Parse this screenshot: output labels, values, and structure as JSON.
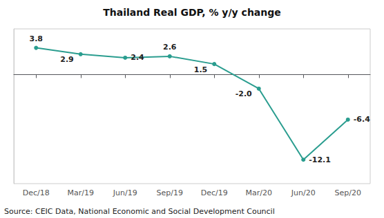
{
  "chart_data": {
    "type": "line",
    "title": "Thailand Real GDP, % y/y change",
    "categories": [
      "Dec/18",
      "Mar/19",
      "Jun/19",
      "Sep/19",
      "Dec/19",
      "Mar/20",
      "Jun/20",
      "Sep/20"
    ],
    "values": [
      3.8,
      2.9,
      2.4,
      2.6,
      1.5,
      -2.0,
      -12.1,
      -6.4
    ],
    "value_labels": [
      "3.8",
      "2.9",
      "2.4",
      "2.6",
      "1.5",
      "-2.0",
      "-12.1",
      "-6.4"
    ],
    "data_labels": true,
    "color": "#2a9d8f",
    "marker": "circle",
    "ylim": [
      -15.5,
      6.5
    ],
    "tick_labels": "x",
    "grid": false,
    "annotations": [
      "Source: CEIC Data, National Economic and Social Development Council"
    ]
  }
}
